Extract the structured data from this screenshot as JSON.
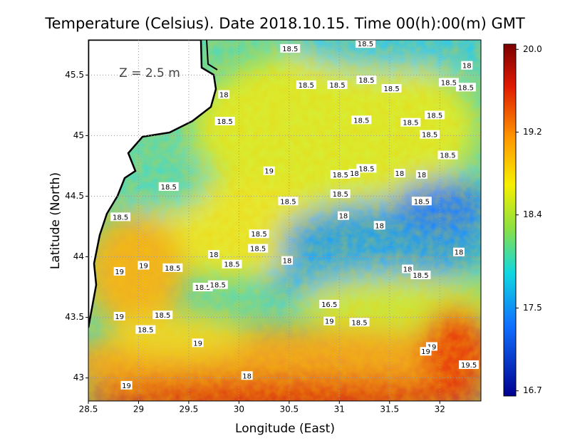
{
  "chart_data": {
    "type": "heatmap-map",
    "title": "Temperature (Celsius). Date 2018.10.15. Time 00(h):00(m) GMT",
    "x_label": "Longitude (East)",
    "y_label": "Latitude (North)",
    "annotation": "Z = 2.5 m",
    "xlim": [
      28.5,
      32.41
    ],
    "ylim": [
      42.81,
      45.79
    ],
    "xticks": [
      28.5,
      29,
      29.5,
      30,
      30.5,
      31,
      31.5,
      32
    ],
    "yticks": [
      43,
      43.5,
      44,
      44.5,
      45,
      45.5
    ],
    "grid": true,
    "colorbar": {
      "lim": [
        16.65,
        20.05
      ],
      "ticks": [
        16.7,
        17.5,
        18.4,
        19.2,
        {
          "value": 20,
          "label": "20.0"
        }
      ]
    },
    "contour_labels": [
      {
        "lon": 30.51,
        "lat": 45.72,
        "value": 18.5
      },
      {
        "lon": 31.26,
        "lat": 45.76,
        "value": 18.5
      },
      {
        "lon": 32.27,
        "lat": 45.58,
        "value": 18
      },
      {
        "lon": 30.67,
        "lat": 45.42,
        "value": 18.5
      },
      {
        "lon": 30.98,
        "lat": 45.42,
        "value": 18.5
      },
      {
        "lon": 31.27,
        "lat": 45.46,
        "value": 18.5
      },
      {
        "lon": 32.09,
        "lat": 45.44,
        "value": 18.5
      },
      {
        "lon": 32.26,
        "lat": 45.4,
        "value": 18.5
      },
      {
        "lon": 31.52,
        "lat": 45.39,
        "value": 18.5
      },
      {
        "lon": 29.85,
        "lat": 45.34,
        "value": 18
      },
      {
        "lon": 31.95,
        "lat": 45.17,
        "value": 18.5
      },
      {
        "lon": 31.22,
        "lat": 45.13,
        "value": 18.5
      },
      {
        "lon": 31.71,
        "lat": 45.11,
        "value": 18.5
      },
      {
        "lon": 29.86,
        "lat": 45.12,
        "value": 18.5
      },
      {
        "lon": 31.9,
        "lat": 45.01,
        "value": 18.5
      },
      {
        "lon": 32.08,
        "lat": 44.84,
        "value": 18.5
      },
      {
        "lon": 30.3,
        "lat": 44.71,
        "value": 19
      },
      {
        "lon": 31.27,
        "lat": 44.73,
        "value": 18.5
      },
      {
        "lon": 31.01,
        "lat": 44.68,
        "value": 18.5
      },
      {
        "lon": 31.15,
        "lat": 44.69,
        "value": 18
      },
      {
        "lon": 31.6,
        "lat": 44.69,
        "value": 18
      },
      {
        "lon": 31.82,
        "lat": 44.68,
        "value": 18
      },
      {
        "lon": 29.3,
        "lat": 44.58,
        "value": 18.5
      },
      {
        "lon": 30.49,
        "lat": 44.46,
        "value": 18.5
      },
      {
        "lon": 31.01,
        "lat": 44.52,
        "value": 18.5
      },
      {
        "lon": 31.82,
        "lat": 44.46,
        "value": 18.5
      },
      {
        "lon": 31.04,
        "lat": 44.34,
        "value": 18
      },
      {
        "lon": 28.82,
        "lat": 44.33,
        "value": 18.5
      },
      {
        "lon": 30.2,
        "lat": 44.19,
        "value": 18.5
      },
      {
        "lon": 31.4,
        "lat": 44.26,
        "value": 18
      },
      {
        "lon": 30.19,
        "lat": 44.07,
        "value": 18.5
      },
      {
        "lon": 29.75,
        "lat": 44.02,
        "value": 18
      },
      {
        "lon": 30.48,
        "lat": 43.97,
        "value": 18
      },
      {
        "lon": 32.19,
        "lat": 44.04,
        "value": 18
      },
      {
        "lon": 29.05,
        "lat": 43.93,
        "value": 19
      },
      {
        "lon": 29.34,
        "lat": 43.91,
        "value": 18.5
      },
      {
        "lon": 29.93,
        "lat": 43.94,
        "value": 18.5
      },
      {
        "lon": 28.81,
        "lat": 43.88,
        "value": 19
      },
      {
        "lon": 31.68,
        "lat": 43.9,
        "value": 18
      },
      {
        "lon": 31.81,
        "lat": 43.85,
        "value": 18.5
      },
      {
        "lon": 29.64,
        "lat": 43.75,
        "value": 18.5
      },
      {
        "lon": 29.79,
        "lat": 43.77,
        "value": 18.5
      },
      {
        "lon": 30.9,
        "lat": 43.61,
        "value": 16.5
      },
      {
        "lon": 28.81,
        "lat": 43.51,
        "value": 19
      },
      {
        "lon": 29.24,
        "lat": 43.52,
        "value": 18.5
      },
      {
        "lon": 30.9,
        "lat": 43.47,
        "value": 19
      },
      {
        "lon": 31.2,
        "lat": 43.46,
        "value": 18.5
      },
      {
        "lon": 29.07,
        "lat": 43.4,
        "value": 18.5
      },
      {
        "lon": 29.59,
        "lat": 43.29,
        "value": 19
      },
      {
        "lon": 31.92,
        "lat": 43.26,
        "value": 19
      },
      {
        "lon": 31.86,
        "lat": 43.22,
        "value": 19
      },
      {
        "lon": 32.29,
        "lat": 43.11,
        "value": 19.5
      },
      {
        "lon": 30.08,
        "lat": 43.02,
        "value": 18
      },
      {
        "lon": 28.88,
        "lat": 42.94,
        "value": 19
      }
    ]
  }
}
